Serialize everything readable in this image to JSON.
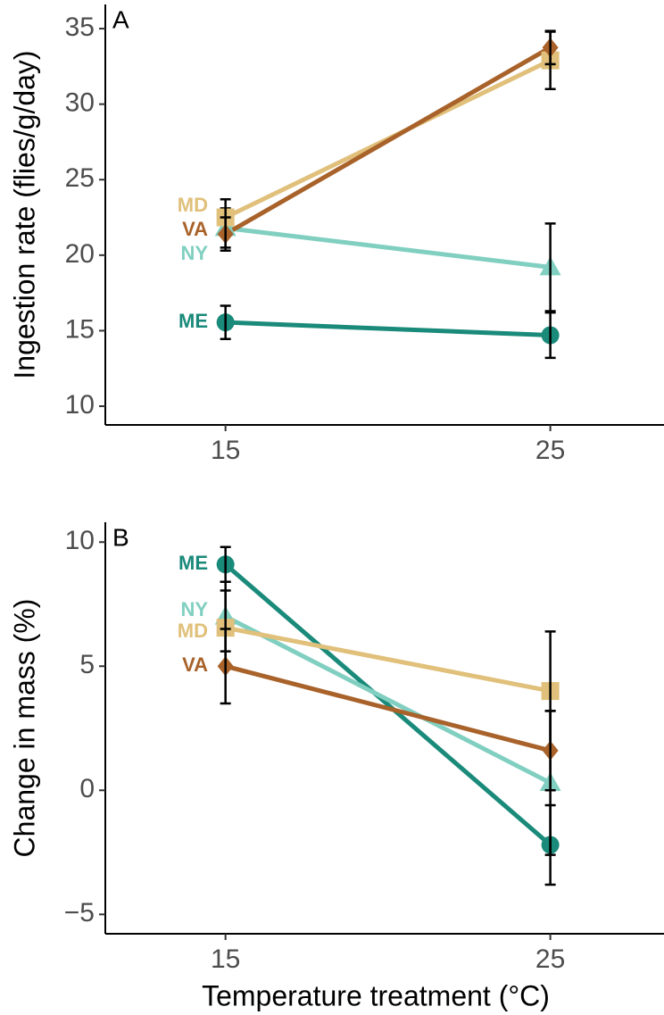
{
  "chart_data": [
    {
      "type": "line",
      "panel_label": "A",
      "ylabel": "Ingestion rate (flies/g/day)",
      "x": [
        15,
        25
      ],
      "xlim": [
        11.3,
        28.5
      ],
      "xticks": [
        15,
        25
      ],
      "ylim": [
        8.76,
        36.6
      ],
      "yticks": [
        10,
        15,
        20,
        25,
        30,
        35
      ],
      "series": [
        {
          "name": "ME",
          "color": "#1a8a7a",
          "marker": "circle",
          "values": [
            15.55,
            14.7
          ],
          "errors": [
            1.1,
            1.5
          ]
        },
        {
          "name": "NY",
          "color": "#80cfc0",
          "marker": "triangle",
          "values": [
            21.8,
            19.2
          ],
          "errors": [
            1.3,
            2.9
          ]
        },
        {
          "name": "MD",
          "color": "#e0c07a",
          "marker": "square",
          "values": [
            22.5,
            32.9
          ],
          "errors": [
            1.2,
            1.9
          ]
        },
        {
          "name": "VA",
          "color": "#a8622a",
          "marker": "diamond",
          "values": [
            21.4,
            33.75
          ],
          "errors": [
            1.1,
            1.1
          ]
        }
      ]
    },
    {
      "type": "line",
      "panel_label": "B",
      "ylabel": "Change in mass (%)",
      "xlabel": "Temperature treatment (°C)",
      "x": [
        15,
        25
      ],
      "xlim": [
        11.3,
        28.5
      ],
      "xticks": [
        15,
        25
      ],
      "ylim": [
        -5.78,
        10.8
      ],
      "yticks": [
        {
          "value": -5,
          "label": "−5"
        },
        0,
        5,
        10
      ],
      "series": [
        {
          "name": "ME",
          "color": "#1a8a7a",
          "marker": "circle",
          "values": [
            9.1,
            -2.2
          ],
          "errors": [
            0.7,
            1.6
          ]
        },
        {
          "name": "NY",
          "color": "#80cfc0",
          "marker": "triangle",
          "values": [
            7.0,
            0.3
          ],
          "errors": [
            1.4,
            2.9
          ]
        },
        {
          "name": "MD",
          "color": "#e0c07a",
          "marker": "square",
          "values": [
            6.55,
            4.0
          ],
          "errors": [
            1.5,
            2.4
          ]
        },
        {
          "name": "VA",
          "color": "#a8622a",
          "marker": "diamond",
          "values": [
            5.0,
            1.6
          ],
          "errors": [
            1.5,
            1.6
          ]
        }
      ]
    }
  ]
}
